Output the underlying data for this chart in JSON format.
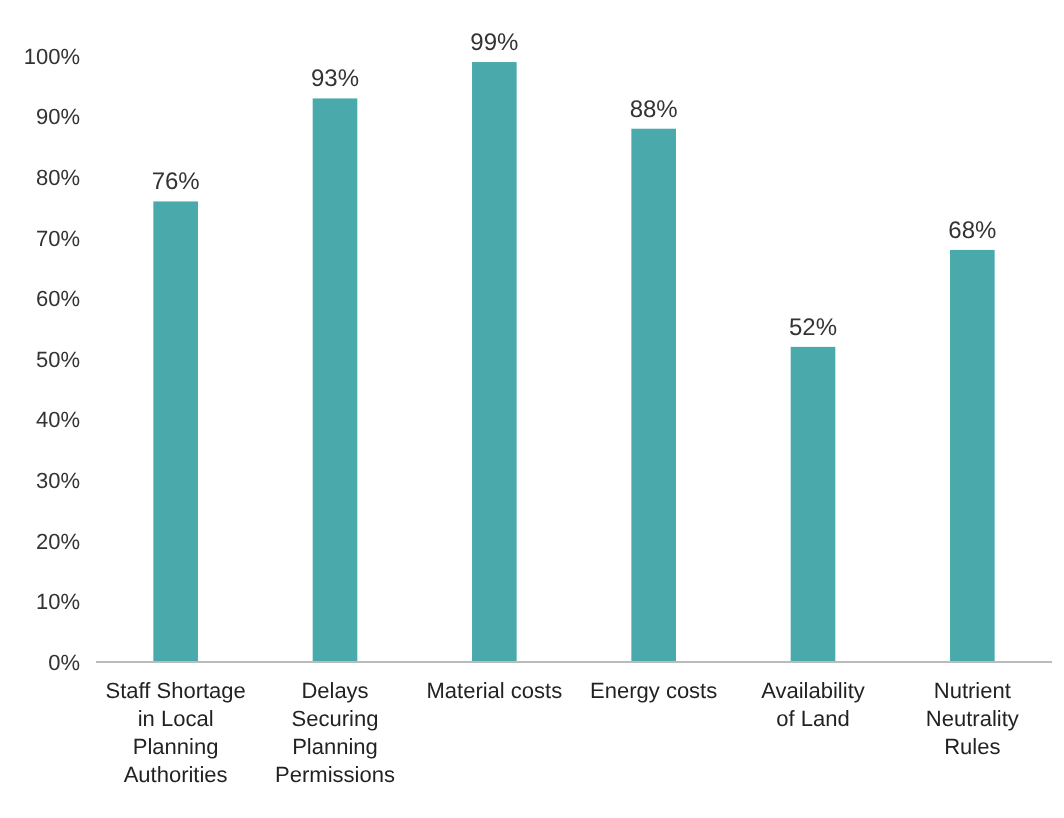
{
  "chart_data": {
    "type": "bar",
    "categories": [
      "Staff Shortage in Local Planning Authorities",
      "Delays Securing Planning Permissions",
      "Material costs",
      "Energy costs",
      "Availability of Land",
      "Nutrient Neutrality Rules"
    ],
    "values": [
      76,
      93,
      99,
      88,
      52,
      68
    ],
    "value_labels": [
      "76%",
      "93%",
      "99%",
      "88%",
      "52%",
      "68%"
    ],
    "color": "#4aa9aa",
    "ylim": [
      0,
      100
    ],
    "yticks": [
      {
        "value": 0,
        "label": "0%"
      },
      {
        "value": 10,
        "label": "10%"
      },
      {
        "value": 20,
        "label": "20%"
      },
      {
        "value": 30,
        "label": "30%"
      },
      {
        "value": 40,
        "label": "40%"
      },
      {
        "value": 50,
        "label": "50%"
      },
      {
        "value": 60,
        "label": "60%"
      },
      {
        "value": 70,
        "label": "70%"
      },
      {
        "value": 80,
        "label": "80%"
      },
      {
        "value": 90,
        "label": "90%"
      },
      {
        "value": 100,
        "label": "100%"
      }
    ],
    "grid": false
  }
}
